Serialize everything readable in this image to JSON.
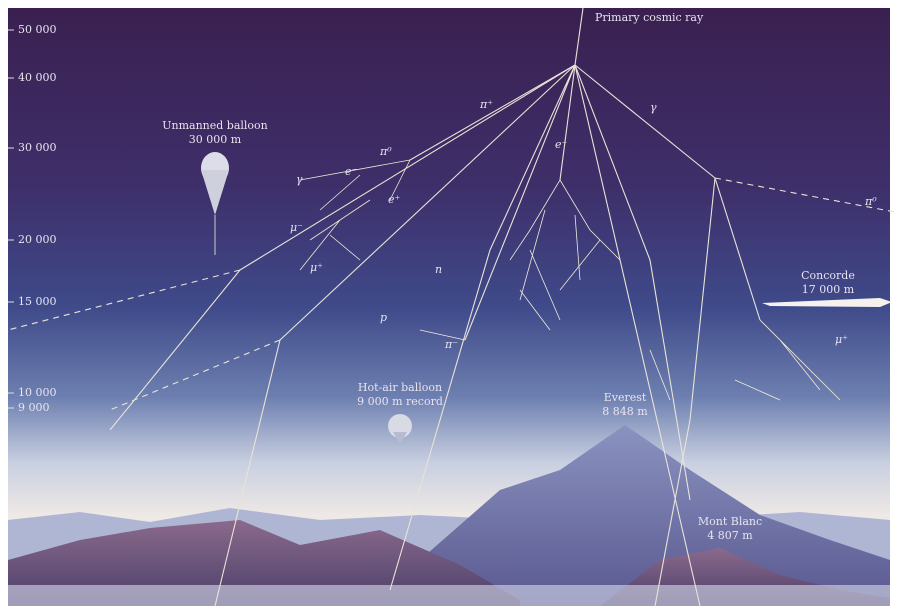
{
  "altitudes": [
    "50 000",
    "40 000",
    "30 000",
    "20 000",
    "15 000",
    "10 000",
    "9 000"
  ],
  "primary": "Primary cosmic ray",
  "objects": [
    {
      "label": "Unmanned balloon",
      "sub": "30 000 m"
    },
    {
      "label": "Concorde",
      "sub": "17 000 m"
    },
    {
      "label": "Hot-air balloon",
      "sub": "9 000 m record"
    },
    {
      "label": "Everest",
      "sub": "8 848 m"
    },
    {
      "label": "Mont Blanc",
      "sub": "4 807 m"
    }
  ],
  "particles": [
    "π⁺",
    "π⁰",
    "γ",
    "e⁻",
    "e⁺",
    "μ⁻",
    "μ⁺",
    "n",
    "p",
    "π⁻",
    "γ",
    "e⁻",
    "μ⁺",
    "π⁰"
  ]
}
